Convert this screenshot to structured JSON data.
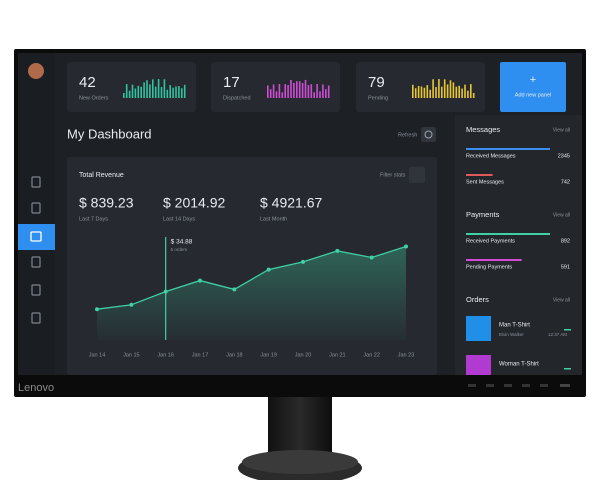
{
  "cards": [
    {
      "value": 42,
      "label": "New Orders",
      "color": "#2ec4a0"
    },
    {
      "value": 17,
      "label": "Dispatched",
      "color": "#d04bd6"
    },
    {
      "value": 79,
      "label": "Pending",
      "color": "#e8c531"
    }
  ],
  "add_panel": {
    "icon": "+",
    "label": "Add new panel"
  },
  "dashboard": {
    "title": "My Dashboard",
    "refresh": "Refresh"
  },
  "revenue": {
    "title": "Total Revenue",
    "filter": "Filter stats",
    "stats": [
      {
        "value": "$ 839.23",
        "label": "Last 7 Days"
      },
      {
        "value": "$ 2014.92",
        "label": "Last 14 Days"
      },
      {
        "value": "$ 4921.67",
        "label": "Last Month"
      }
    ],
    "tooltip": {
      "value": "$ 34.88",
      "label": "5 orders"
    },
    "chart": {
      "type": "line",
      "categories": [
        "Jan 14",
        "Jan 15",
        "Jan 16",
        "Jan 17",
        "Jan 18",
        "Jan 19",
        "Jan 20",
        "Jan 21",
        "Jan 22",
        "Jan 23"
      ],
      "values": [
        28,
        32,
        44,
        54,
        46,
        64,
        71,
        81,
        75,
        85
      ],
      "color": "#3fd0a4"
    }
  },
  "messages": {
    "title": "Messages",
    "view_all": "View all",
    "items": [
      {
        "label": "Received Messages",
        "value": 2345,
        "color": "#3b8ef0"
      },
      {
        "label": "Sent Messages",
        "value": 742,
        "color": "#e05a5a"
      }
    ]
  },
  "payments": {
    "title": "Payments",
    "view_all": "View all",
    "items": [
      {
        "label": "Received Payments",
        "value": 892,
        "color": "#3fd0a4"
      },
      {
        "label": "Pending Payments",
        "value": 591,
        "color": "#d04bd6"
      }
    ]
  },
  "orders": {
    "title": "Orders",
    "view_all": "View all",
    "items": [
      {
        "name": "Man T-Shirt",
        "customer": "Elvin Walker",
        "time": "12:37 AM"
      },
      {
        "name": "Woman T-Shirt"
      }
    ]
  },
  "brand": "Lenovo"
}
